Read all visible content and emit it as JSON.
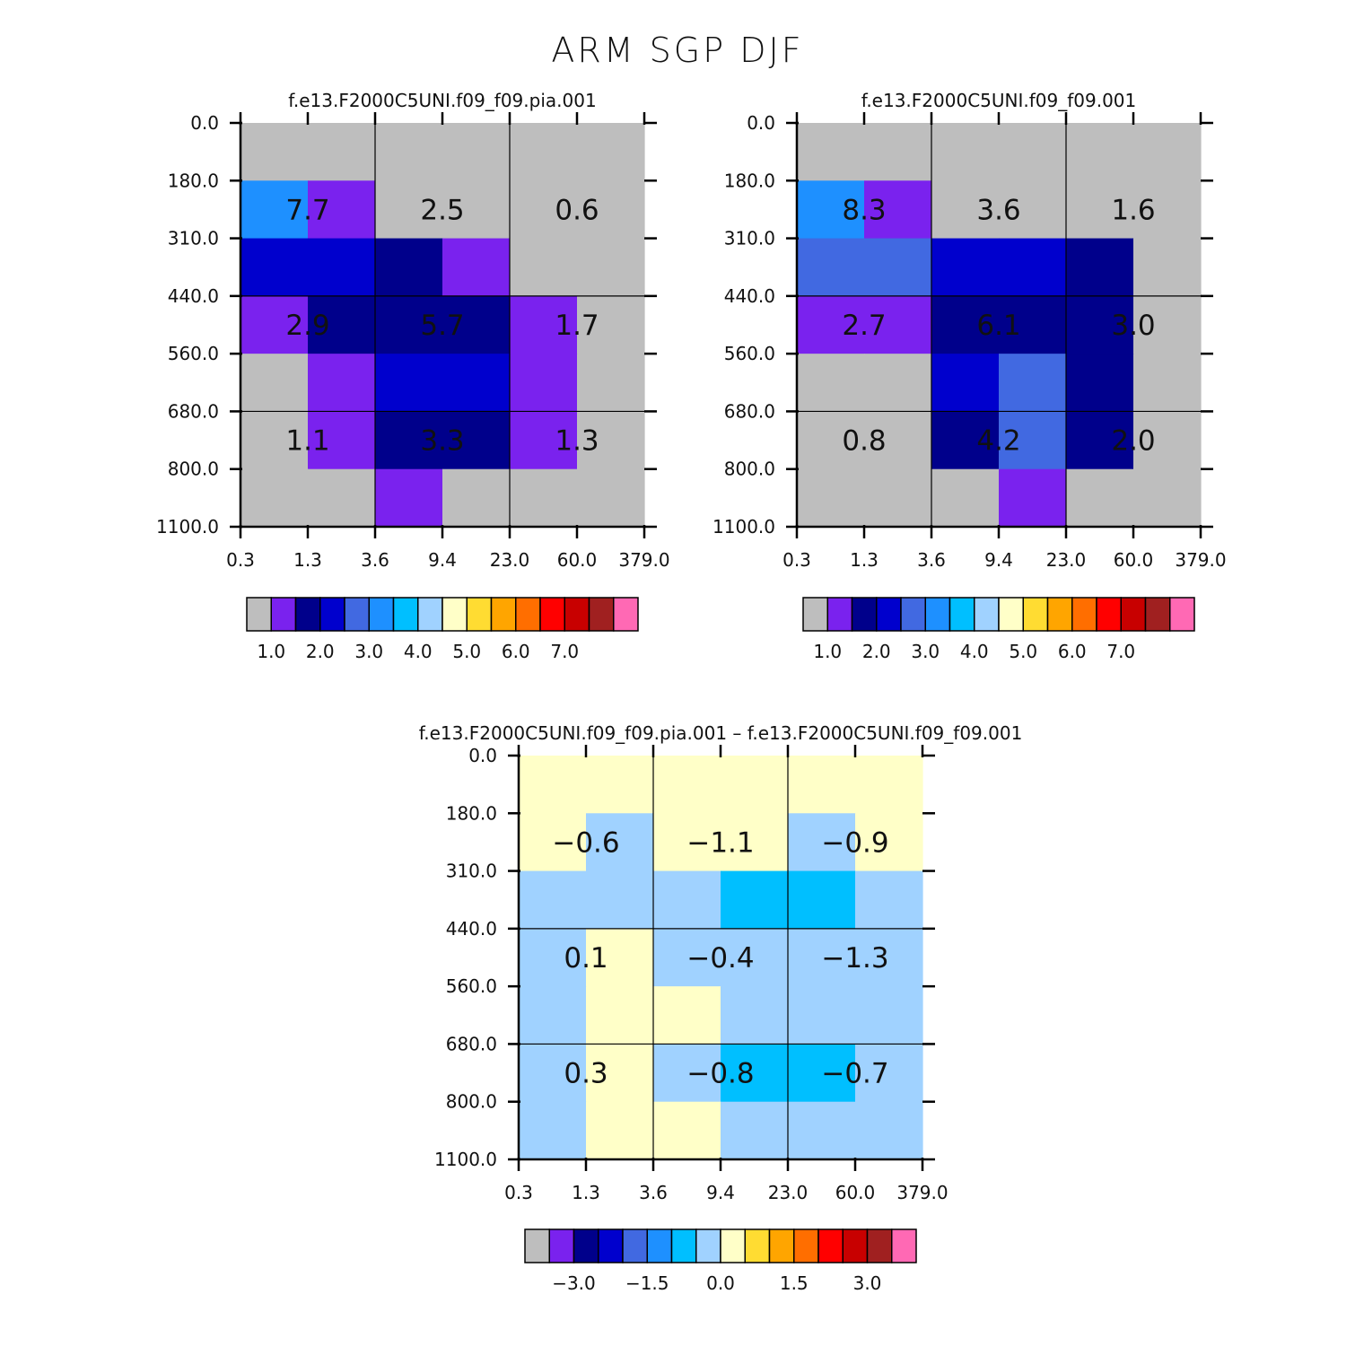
{
  "title": "ARM SGP DJF",
  "chart_data": [
    {
      "type": "heatmap",
      "title": "f.e13.F2000C5UNI.f09_f09.pia.001",
      "xlabel": "",
      "ylabel": "",
      "x_ticks": [
        "0.3",
        "1.3",
        "3.6",
        "9.4",
        "23.0",
        "60.0",
        "379.0"
      ],
      "y_ticks": [
        "0.0",
        "180.0",
        "310.0",
        "440.0",
        "560.0",
        "680.0",
        "800.0",
        "1100.0"
      ],
      "cells": [
        [
          "grey",
          "grey",
          "grey",
          "grey",
          "grey",
          "grey"
        ],
        [
          "#1e90ff",
          "#7a22ee",
          "grey",
          "grey",
          "grey",
          "grey"
        ],
        [
          "#0000cd",
          "#0000cd",
          "#00008b",
          "#7a22ee",
          "grey",
          "grey"
        ],
        [
          "#7a22ee",
          "#00008b",
          "#00008b",
          "#00008b",
          "#7a22ee",
          "grey"
        ],
        [
          "grey",
          "#7a22ee",
          "#0000cd",
          "#0000cd",
          "#7a22ee",
          "grey"
        ],
        [
          "grey",
          "#7a22ee",
          "#00008b",
          "#00008b",
          "#7a22ee",
          "grey"
        ],
        [
          "grey",
          "grey",
          "#7a22ee",
          "grey",
          "grey",
          "grey"
        ]
      ],
      "annotations": [
        [
          "7.7",
          "2.5",
          "0.6"
        ],
        [
          "2.9",
          "5.7",
          "1.7"
        ],
        [
          "1.1",
          "3.3",
          "1.3"
        ]
      ],
      "colorbar": {
        "colors": [
          "#bebebe",
          "#7a22ee",
          "#00008b",
          "#0000cd",
          "#4169e1",
          "#1e90ff",
          "#00bfff",
          "#a0d2ff",
          "#ffffc8",
          "#ffdc32",
          "#ffa500",
          "#ff6e00",
          "#ff0000",
          "#c80000",
          "#a02020",
          "#ff69b4"
        ],
        "labels": [
          "1.0",
          "2.0",
          "3.0",
          "4.0",
          "5.0",
          "6.0",
          "7.0"
        ],
        "label_boundaries": [
          1,
          3,
          5,
          7,
          9,
          11,
          13
        ]
      }
    },
    {
      "type": "heatmap",
      "title": "f.e13.F2000C5UNI.f09_f09.001",
      "xlabel": "",
      "ylabel": "",
      "x_ticks": [
        "0.3",
        "1.3",
        "3.6",
        "9.4",
        "23.0",
        "60.0",
        "379.0"
      ],
      "y_ticks": [
        "0.0",
        "180.0",
        "310.0",
        "440.0",
        "560.0",
        "680.0",
        "800.0",
        "1100.0"
      ],
      "cells": [
        [
          "grey",
          "grey",
          "grey",
          "grey",
          "grey",
          "grey"
        ],
        [
          "#1e90ff",
          "#7a22ee",
          "grey",
          "grey",
          "grey",
          "grey"
        ],
        [
          "#4169e1",
          "#4169e1",
          "#0000cd",
          "#0000cd",
          "#00008b",
          "grey"
        ],
        [
          "#7a22ee",
          "#7a22ee",
          "#00008b",
          "#00008b",
          "#00008b",
          "grey"
        ],
        [
          "grey",
          "grey",
          "#0000cd",
          "#4169e1",
          "#00008b",
          "grey"
        ],
        [
          "grey",
          "grey",
          "#00008b",
          "#4169e1",
          "#00008b",
          "grey"
        ],
        [
          "grey",
          "grey",
          "grey",
          "#7a22ee",
          "grey",
          "grey"
        ]
      ],
      "annotations": [
        [
          "8.3",
          "3.6",
          "1.6"
        ],
        [
          "2.7",
          "6.1",
          "3.0"
        ],
        [
          "0.8",
          "4.2",
          "2.0"
        ]
      ],
      "colorbar": {
        "colors": [
          "#bebebe",
          "#7a22ee",
          "#00008b",
          "#0000cd",
          "#4169e1",
          "#1e90ff",
          "#00bfff",
          "#a0d2ff",
          "#ffffc8",
          "#ffdc32",
          "#ffa500",
          "#ff6e00",
          "#ff0000",
          "#c80000",
          "#a02020",
          "#ff69b4"
        ],
        "labels": [
          "1.0",
          "2.0",
          "3.0",
          "4.0",
          "5.0",
          "6.0",
          "7.0"
        ],
        "label_boundaries": [
          1,
          3,
          5,
          7,
          9,
          11,
          13
        ]
      }
    },
    {
      "type": "heatmap",
      "title": "f.e13.F2000C5UNI.f09_f09.pia.001 – f.e13.F2000C5UNI.f09_f09.001",
      "xlabel": "",
      "ylabel": "",
      "x_ticks": [
        "0.3",
        "1.3",
        "3.6",
        "9.4",
        "23.0",
        "60.0",
        "379.0"
      ],
      "y_ticks": [
        "0.0",
        "180.0",
        "310.0",
        "440.0",
        "560.0",
        "680.0",
        "800.0",
        "1100.0"
      ],
      "cells": [
        [
          "#ffffc8",
          "#ffffc8",
          "#ffffc8",
          "#ffffc8",
          "#ffffc8",
          "#ffffc8"
        ],
        [
          "#ffffc8",
          "#a0d2ff",
          "#ffffc8",
          "#ffffc8",
          "#a0d2ff",
          "#ffffc8"
        ],
        [
          "#a0d2ff",
          "#a0d2ff",
          "#a0d2ff",
          "#00bfff",
          "#00bfff",
          "#a0d2ff"
        ],
        [
          "#a0d2ff",
          "#ffffc8",
          "#a0d2ff",
          "#a0d2ff",
          "#a0d2ff",
          "#a0d2ff"
        ],
        [
          "#a0d2ff",
          "#ffffc8",
          "#ffffc8",
          "#a0d2ff",
          "#a0d2ff",
          "#a0d2ff"
        ],
        [
          "#a0d2ff",
          "#ffffc8",
          "#a0d2ff",
          "#00bfff",
          "#00bfff",
          "#a0d2ff"
        ],
        [
          "#a0d2ff",
          "#ffffc8",
          "#ffffc8",
          "#a0d2ff",
          "#a0d2ff",
          "#a0d2ff"
        ]
      ],
      "annotations": [
        [
          "−0.6",
          "−1.1",
          "−0.9"
        ],
        [
          "0.1",
          "−0.4",
          "−1.3"
        ],
        [
          "0.3",
          "−0.8",
          "−0.7"
        ]
      ],
      "colorbar": {
        "colors": [
          "#bebebe",
          "#7a22ee",
          "#00008b",
          "#0000cd",
          "#4169e1",
          "#1e90ff",
          "#00bfff",
          "#a0d2ff",
          "#ffffc8",
          "#ffdc32",
          "#ffa500",
          "#ff6e00",
          "#ff0000",
          "#c80000",
          "#a02020",
          "#ff69b4"
        ],
        "labels": [
          "−3.0",
          "−1.5",
          "0.0",
          "1.5",
          "3.0"
        ],
        "label_boundaries": [
          2,
          5,
          8,
          11,
          14
        ]
      }
    }
  ]
}
